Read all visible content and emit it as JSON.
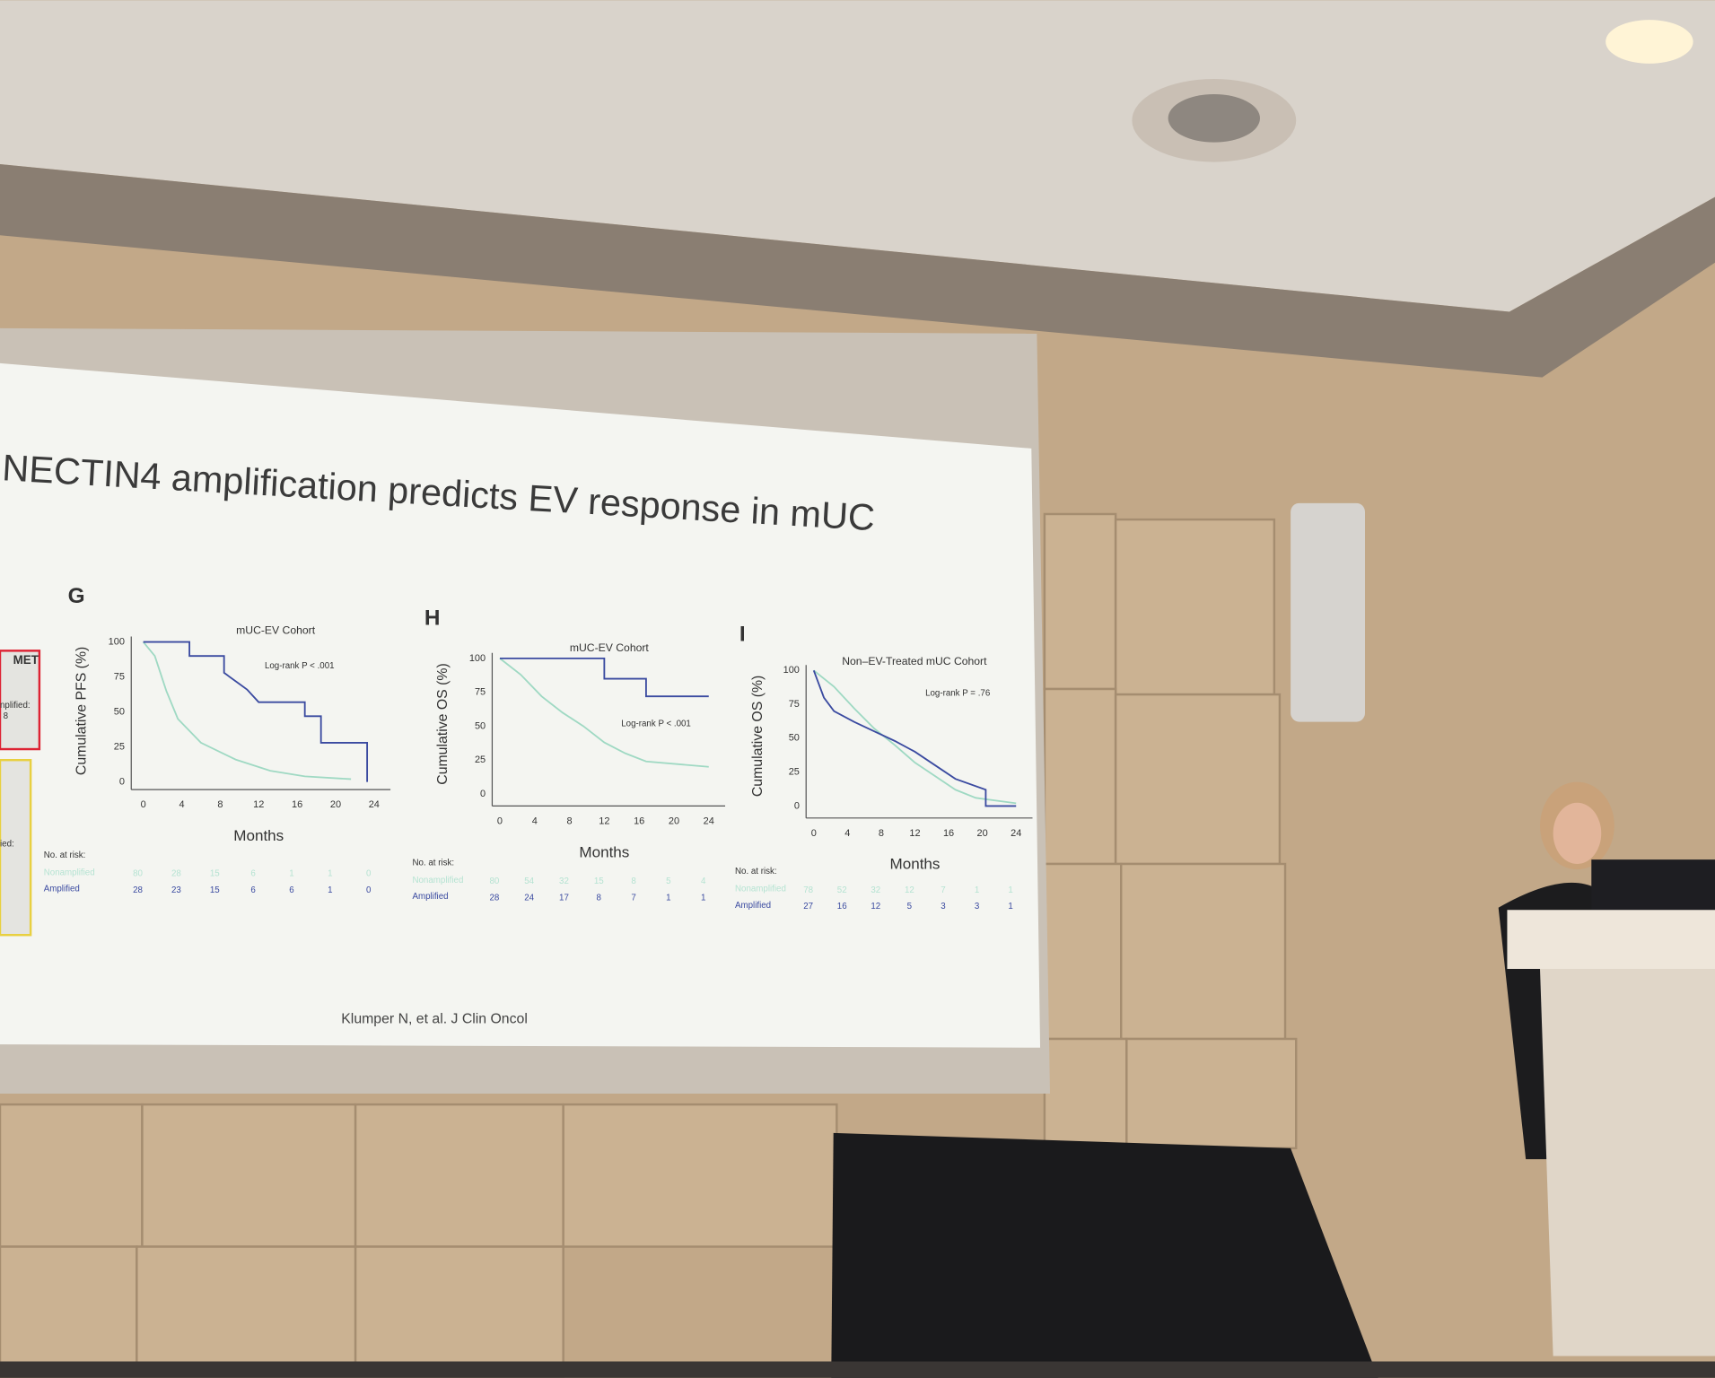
{
  "slide": {
    "title": "NECTIN4 amplification predicts EV response in mUC",
    "citation": "Klumper N, et al. J Clin Oncol",
    "side_fragment": {
      "header": "MET",
      "labels": [
        "nplified:",
        "8",
        "ied:"
      ]
    }
  },
  "panels": [
    {
      "letter": "G",
      "title": "mUC-EV Cohort",
      "ylabel": "Cumulative PFS (%)",
      "xlabel": "Months",
      "annotation": "Log-rank P < .001",
      "yticks": [
        0,
        25,
        50,
        75,
        100
      ],
      "xticks": [
        0,
        4,
        8,
        12,
        16,
        20,
        24
      ],
      "risk_title": "No. at risk:",
      "risk": [
        {
          "name": "Nonamplified",
          "values": [
            80,
            28,
            15,
            6,
            1,
            1,
            0
          ]
        },
        {
          "name": "Amplified",
          "values": [
            28,
            23,
            15,
            6,
            6,
            1,
            0
          ]
        }
      ]
    },
    {
      "letter": "H",
      "title": "mUC-EV Cohort",
      "ylabel": "Cumulative OS (%)",
      "xlabel": "Months",
      "annotation": "Log-rank P < .001",
      "yticks": [
        0,
        25,
        50,
        75,
        100
      ],
      "xticks": [
        0,
        4,
        8,
        12,
        16,
        20,
        24
      ],
      "risk_title": "No. at risk:",
      "risk": [
        {
          "name": "Nonamplified",
          "values": [
            80,
            54,
            32,
            15,
            8,
            5,
            4
          ]
        },
        {
          "name": "Amplified",
          "values": [
            28,
            24,
            17,
            8,
            7,
            1,
            1
          ]
        }
      ]
    },
    {
      "letter": "I",
      "title": "Non–EV-Treated mUC Cohort",
      "ylabel": "Cumulative OS (%)",
      "xlabel": "Months",
      "annotation": "Log-rank P = .76",
      "yticks": [
        0,
        25,
        50,
        75,
        100
      ],
      "xticks": [
        0,
        4,
        8,
        12,
        16,
        20,
        24
      ],
      "risk_title": "No. at risk:",
      "risk": [
        {
          "name": "Nonamplified",
          "values": [
            78,
            52,
            32,
            12,
            7,
            1,
            1
          ]
        },
        {
          "name": "Amplified",
          "values": [
            27,
            16,
            12,
            5,
            3,
            3,
            1
          ]
        }
      ]
    }
  ]
}
